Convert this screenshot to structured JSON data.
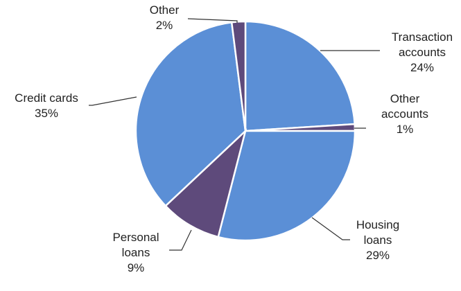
{
  "chart_data": {
    "type": "pie",
    "title": "",
    "start": "12 o'clock",
    "direction": "clockwise",
    "slices": [
      {
        "label": [
          "Transaction",
          "accounts"
        ],
        "value": 24,
        "value_label": "24%",
        "color": "#5B8FD6"
      },
      {
        "label": [
          "Other",
          "accounts"
        ],
        "value": 1,
        "value_label": "1%",
        "color": "#5E4A7B"
      },
      {
        "label": [
          "Housing",
          "loans"
        ],
        "value": 29,
        "value_label": "29%",
        "color": "#5B8FD6"
      },
      {
        "label": [
          "Personal",
          "loans"
        ],
        "value": 9,
        "value_label": "9%",
        "color": "#5E4A7B"
      },
      {
        "label": [
          "Credit cards"
        ],
        "value": 35,
        "value_label": "35%",
        "color": "#5B8FD6"
      },
      {
        "label": [
          "Other"
        ],
        "value": 2,
        "value_label": "2%",
        "color": "#5E4A7B"
      }
    ]
  }
}
